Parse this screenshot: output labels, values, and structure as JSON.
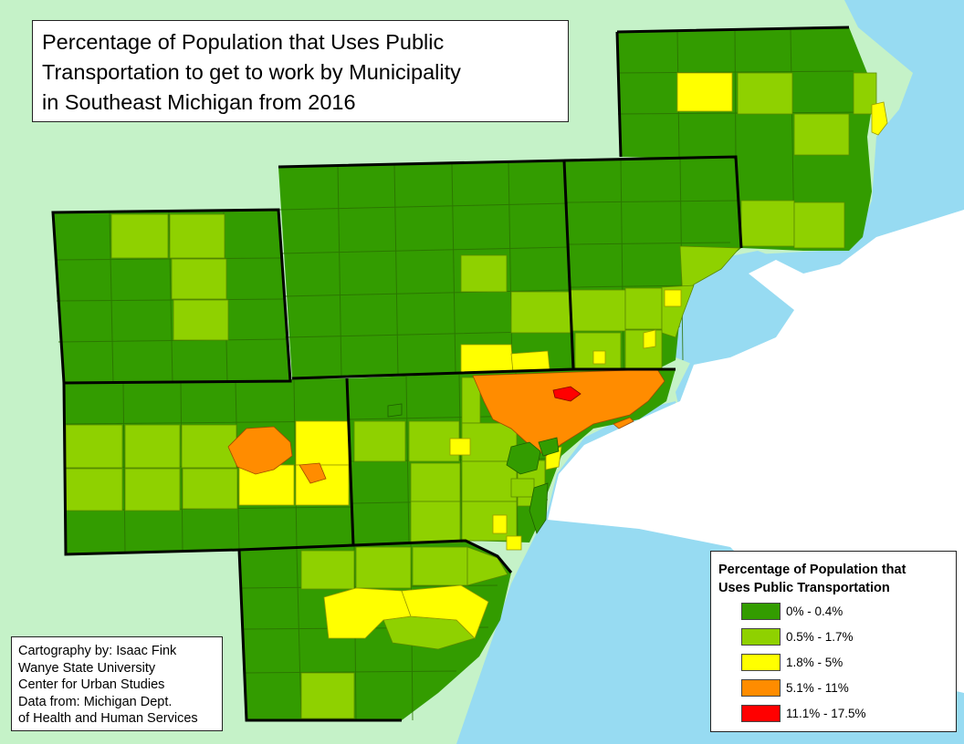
{
  "title": {
    "lines": [
      "Percentage of Population that Uses Public",
      "Transportation to get to work by Municipality",
      "in Southeast Michigan from 2016"
    ]
  },
  "credits": {
    "lines": [
      "Cartography by: Isaac Fink",
      "Wanye State University",
      "Center for Urban Studies",
      "Data from: Michigan Dept.",
      "of Health and Human Services"
    ]
  },
  "legend": {
    "title_lines": [
      "Percentage of Population that",
      "Uses Public Transportation"
    ],
    "classes": [
      {
        "label": "0% - 0.4%",
        "color": "#339c00"
      },
      {
        "label": "0.5% - 1.7%",
        "color": "#8fd100"
      },
      {
        "label": "1.8% - 5%",
        "color": "#ffff00"
      },
      {
        "label": "5.1% - 11%",
        "color": "#ff8c00"
      },
      {
        "label": "11.1% - 17.5%",
        "color": "#ff0000"
      }
    ]
  },
  "colors": {
    "water": "#97dbf2",
    "outside_land": "#c5f2c8",
    "canada": "#ffffff",
    "boundary": "#000000"
  }
}
